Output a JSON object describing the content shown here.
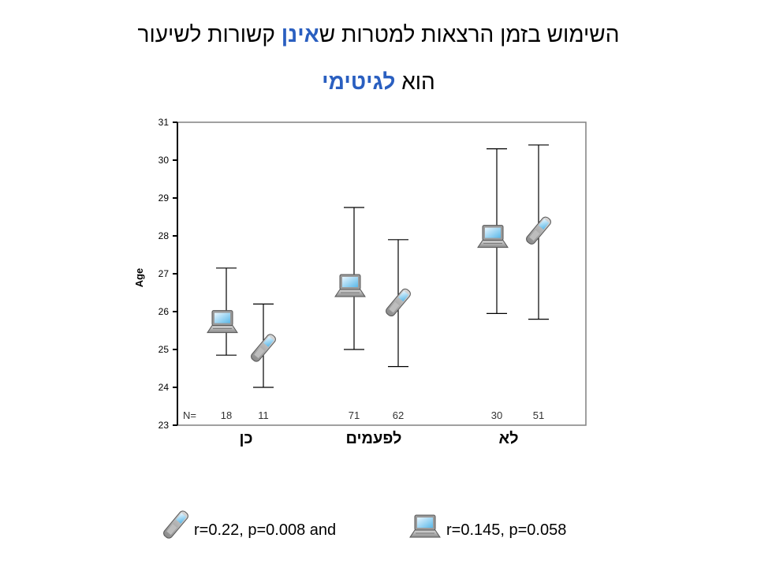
{
  "title": {
    "line1_part1": "השימוש בזמן הרצאות למטרות ש",
    "line1_highlight": "אינן",
    "line1_part2": " קשורות לשיעור",
    "line2_part1": "הוא ",
    "line2_highlight": "לגיטימי"
  },
  "colors": {
    "highlight": "#2a5fc0",
    "axis": "#000000",
    "frame": "#808080"
  },
  "chart_data": {
    "type": "errorbar",
    "ylabel": "Age",
    "ylim": [
      23,
      31
    ],
    "yticks": [
      23,
      24,
      25,
      26,
      27,
      28,
      29,
      30,
      31
    ],
    "categories": [
      "כן",
      "לפעמים",
      "לא"
    ],
    "n_label": "N=",
    "series": [
      {
        "icon": "laptop-icon",
        "means": [
          25.8,
          26.75,
          28.05
        ],
        "lower": [
          24.85,
          25.0,
          25.95
        ],
        "upper": [
          27.15,
          28.75,
          30.3
        ],
        "n": [
          "18",
          "71",
          "30"
        ]
      },
      {
        "icon": "phone-icon",
        "means": [
          25.0,
          26.2,
          28.1
        ],
        "lower": [
          24.0,
          24.55,
          25.8
        ],
        "upper": [
          26.2,
          27.9,
          30.4
        ],
        "n": [
          "11",
          "62",
          "51"
        ]
      }
    ]
  },
  "legend": {
    "phone_text": "r=0.22, p=0.008 and",
    "laptop_text": "r=0.145, p=0.058"
  }
}
